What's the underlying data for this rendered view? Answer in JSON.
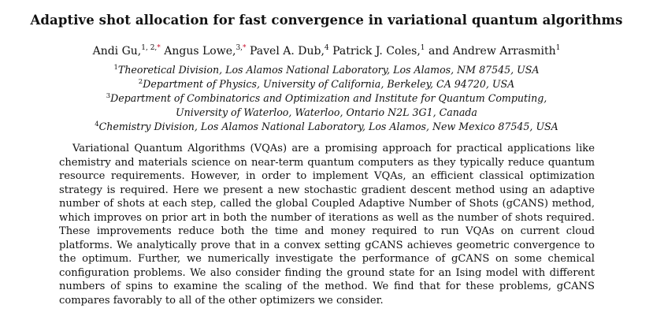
{
  "paper": {
    "title": "Adaptive shot allocation for fast convergence in variational quantum algorithms",
    "authors": [
      {
        "name": "Andi Gu,",
        "marks": "1, 2,",
        "star": "*",
        "sep": " "
      },
      {
        "name": "Angus Lowe,",
        "marks": "3,",
        "star": "*",
        "sep": " "
      },
      {
        "name": "Pavel A. Dub,",
        "marks": "4",
        "star": "",
        "sep": " "
      },
      {
        "name": "Patrick J. Coles,",
        "marks": "1",
        "star": "",
        "sep": " and "
      },
      {
        "name": "Andrew Arrasmith",
        "marks": "1",
        "star": "",
        "sep": ""
      }
    ],
    "affiliations": {
      "a1_mark": "1",
      "a1_text": "Theoretical Division, Los Alamos National Laboratory, Los Alamos, NM 87545, USA",
      "a2_mark": "2",
      "a2_text": "Department of Physics, University of California, Berkeley, CA 94720, USA",
      "a3_mark": "3",
      "a3_text_line1": "Department of Combinatorics and Optimization and Institute for Quantum Computing,",
      "a3_text_line2": "University of Waterloo, Waterloo, Ontario N2L 3G1, Canada",
      "a4_mark": "4",
      "a4_text": "Chemistry Division, Los Alamos National Laboratory, Los Alamos, New Mexico 87545, USA"
    },
    "abstract": "Variational Quantum Algorithms (VQAs) are a promising approach for practical applications like chemistry and materials science on near-term quantum computers as they typically reduce quantum resource requirements. However, in order to implement VQAs, an efficient classical optimization strategy is required. Here we present a new stochastic gradient descent method using an adaptive number of shots at each step, called the global Coupled Adaptive Number of Shots (gCANS) method, which improves on prior art in both the number of iterations as well as the number of shots required. These improvements reduce both the time and money required to run VQAs on current cloud platforms. We analytically prove that in a convex setting gCANS achieves geometric convergence to the optimum. Further, we numerically investigate the performance of gCANS on some chemical configuration problems. We also consider finding the ground state for an Ising model with different numbers of spins to examine the scaling of the method. We find that for these problems, gCANS compares favorably to all of the other optimizers we consider."
  }
}
